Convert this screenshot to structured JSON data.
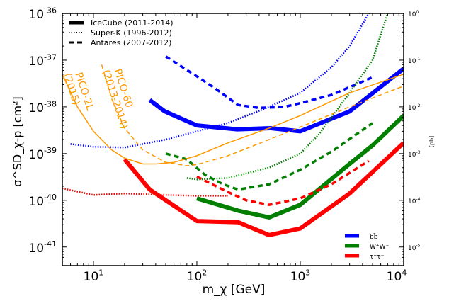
{
  "chart_data": {
    "type": "line",
    "xlabel": "m_χ [GeV]",
    "ylabel": "σ^SD_χ-p [cm²]",
    "y2label": "[pb]",
    "xscale": "log",
    "yscale": "log",
    "xlim": [
      5,
      10000
    ],
    "ylim": [
      4e-42,
      1e-36
    ],
    "xticks": [
      {
        "v": 10,
        "e": "1"
      },
      {
        "v": 100,
        "e": "2"
      },
      {
        "v": 1000,
        "e": "3"
      },
      {
        "v": 10000,
        "e": "4"
      }
    ],
    "yticks": [
      {
        "v": 1e-36,
        "e": "-36"
      },
      {
        "v": 1e-37,
        "e": "-37"
      },
      {
        "v": 1e-38,
        "e": "-38"
      },
      {
        "v": 1e-39,
        "e": "-39"
      },
      {
        "v": 1e-40,
        "e": "-40"
      },
      {
        "v": 1e-41,
        "e": "-41"
      }
    ],
    "y2ticks": [
      {
        "v": 1e-36,
        "e": "0"
      },
      {
        "v": 1e-37,
        "e": "-1"
      },
      {
        "v": 1e-38,
        "e": "-2"
      },
      {
        "v": 1e-39,
        "e": "-3"
      },
      {
        "v": 1e-40,
        "e": "-4"
      },
      {
        "v": 1e-41,
        "e": "-5"
      }
    ],
    "style_legend": {
      "placement": "top-left",
      "entries": [
        {
          "label": "IceCube (2011-2014)",
          "style": "solid"
        },
        {
          "label": "Super-K (1996-2012)",
          "style": "dotted"
        },
        {
          "label": "Antares (2007-2012)",
          "style": "dashed"
        }
      ]
    },
    "channel_legend": {
      "placement": "bottom-right",
      "entries": [
        {
          "label": "bb̄",
          "color": "#0000ff"
        },
        {
          "label": "W⁺W⁻",
          "color": "#007f00"
        },
        {
          "label": "τ⁺τ⁻",
          "color": "#ff0000"
        }
      ]
    },
    "annotations": [
      {
        "text1": "PICO-2L",
        "text2": "(2015)",
        "color": "#ff9900"
      },
      {
        "text1": "PICO-60",
        "text2": "(2013-2014)",
        "color": "#ff9900"
      }
    ],
    "series": [
      {
        "id": "icecube-bb",
        "color": "#0000ff",
        "style": "solid",
        "x": [
          35,
          49,
          100,
          245,
          520,
          1000,
          3000,
          10000
        ],
        "y": [
          1.4e-38,
          8e-39,
          4e-39,
          3.3e-39,
          3.5e-39,
          3e-39,
          8e-39,
          6.6e-38
        ]
      },
      {
        "id": "antares-bb",
        "color": "#0000ff",
        "style": "dashed",
        "x": [
          50,
          100,
          150,
          250,
          400,
          700,
          1000,
          2000,
          5000
        ],
        "y": [
          1.2e-37,
          4.5e-38,
          2.5e-38,
          1.1e-38,
          9.5e-39,
          1e-38,
          1.2e-38,
          1.8e-38,
          4.3e-38
        ]
      },
      {
        "id": "superk-bb",
        "color": "#0000ff",
        "style": "dotted",
        "x": [
          6,
          10,
          20,
          50,
          100,
          200,
          500,
          1000,
          2000,
          3000,
          4600
        ],
        "y": [
          1.6e-39,
          1.4e-39,
          1.35e-39,
          2e-39,
          3e-39,
          4.5e-39,
          1e-38,
          2e-38,
          7e-38,
          2e-37,
          1e-36
        ]
      },
      {
        "id": "icecube-ww",
        "color": "#007f00",
        "style": "solid",
        "x": [
          100,
          250,
          500,
          1000,
          3000,
          5000,
          10000
        ],
        "y": [
          1.1e-40,
          6e-41,
          4.3e-41,
          8e-41,
          6e-40,
          1.5e-39,
          6.5e-39
        ]
      },
      {
        "id": "antares-ww",
        "color": "#007f00",
        "style": "dashed",
        "x": [
          50,
          80,
          120,
          180,
          250,
          500,
          1000,
          2000,
          5000
        ],
        "y": [
          1e-39,
          7.5e-40,
          3.5e-40,
          2.2e-40,
          1.7e-40,
          2.2e-40,
          4.5e-40,
          1.1e-39,
          4.5e-39
        ]
      },
      {
        "id": "superk-ww",
        "color": "#007f00",
        "style": "dotted",
        "x": [
          80,
          100,
          200,
          500,
          1000,
          1500,
          3000,
          5000,
          7000
        ],
        "y": [
          3e-40,
          2.8e-40,
          3e-40,
          5e-40,
          1e-39,
          2.5e-39,
          2e-38,
          1e-37,
          1e-36
        ]
      },
      {
        "id": "icecube-tautau",
        "color": "#ff0000",
        "style": "solid",
        "x": [
          20,
          35,
          100,
          250,
          500,
          1000,
          3000,
          10000
        ],
        "y": [
          7.5e-40,
          1.7e-40,
          3.6e-41,
          3.4e-41,
          1.8e-41,
          2.5e-41,
          1.4e-40,
          1.7e-39
        ]
      },
      {
        "id": "antares-tautau",
        "color": "#ff0000",
        "style": "dashed",
        "x": [
          100,
          200,
          300,
          500,
          1000,
          2000,
          4600
        ],
        "y": [
          3.2e-40,
          1.5e-40,
          1e-40,
          8e-41,
          1.1e-40,
          2.2e-40,
          7e-40
        ]
      },
      {
        "id": "superk-tautau",
        "color": "#ff0000",
        "style": "dotted",
        "x": [
          5,
          10,
          20,
          50,
          100,
          200
        ],
        "y": [
          1.8e-40,
          1.3e-40,
          1.4e-40,
          1.3e-40,
          1.25e-40,
          1.25e-40
        ]
      },
      {
        "id": "pico-2l",
        "color": "#ff9900",
        "style": "thin-solid",
        "x": [
          5,
          7,
          10,
          15,
          20,
          30,
          40,
          60,
          100,
          200,
          500,
          1000,
          3000,
          10000
        ],
        "y": [
          5e-38,
          1e-38,
          3e-39,
          1.2e-39,
          8e-40,
          6e-40,
          6e-40,
          6.5e-40,
          9e-40,
          1.7e-39,
          3.5e-39,
          6.5e-39,
          2e-38,
          5e-38
        ]
      },
      {
        "id": "pico-60",
        "color": "#ff9900",
        "style": "thin-dashed",
        "x": [
          12,
          15,
          20,
          30,
          50,
          80,
          100,
          200,
          500,
          1000,
          3000,
          10000
        ],
        "y": [
          8e-38,
          1.5e-38,
          3.5e-39,
          1.2e-39,
          6.5e-40,
          5.5e-40,
          5.8e-40,
          9e-40,
          2e-39,
          3.7e-39,
          1e-38,
          2.8e-38
        ]
      }
    ]
  }
}
